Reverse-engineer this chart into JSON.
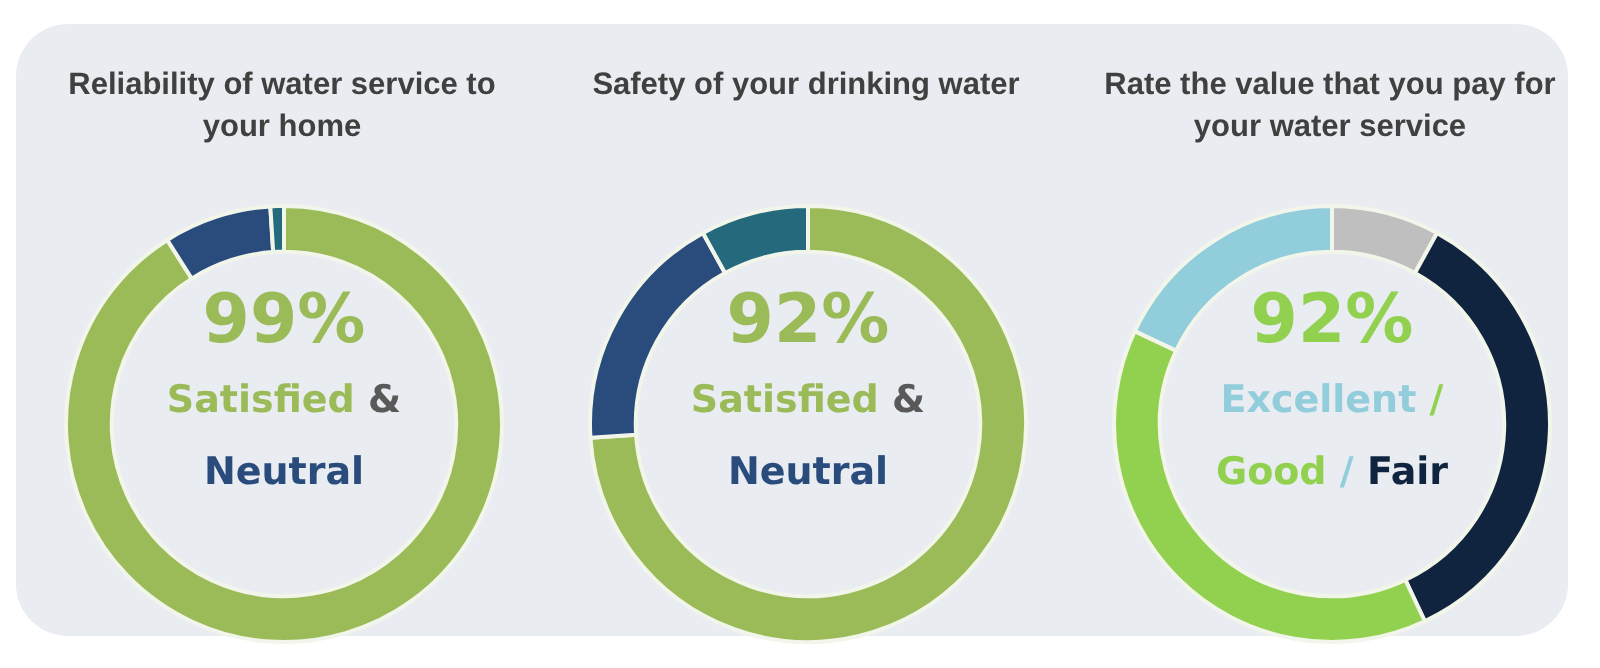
{
  "chart_data": [
    {
      "type": "donut",
      "title": "Reliability of water service to your home",
      "categories": [
        null,
        null,
        null
      ],
      "values": [
        91,
        8,
        1
      ],
      "colors": [
        "#9bbb59",
        "#2a4c7d",
        "#24697c"
      ],
      "annotations": [
        "99%",
        "Satisfied & Neutral"
      ],
      "legend": false
    },
    {
      "type": "donut",
      "title": "Safety of your drinking water",
      "categories": [
        null,
        null,
        null
      ],
      "values": [
        74,
        18,
        8
      ],
      "colors": [
        "#9bbb59",
        "#2a4c7d",
        "#24697c"
      ],
      "annotations": [
        "92%",
        "Satisfied & Neutral"
      ],
      "legend": false
    },
    {
      "type": "donut",
      "title": "Rate the value that you pay for your water service",
      "categories": [
        null,
        null,
        null,
        null
      ],
      "values": [
        8,
        35,
        39,
        18
      ],
      "colors": [
        "#bfbfbf",
        "#10243f",
        "#92d050",
        "#92cddc"
      ],
      "annotations": [
        "92%",
        "Excellent / Good / Fair"
      ],
      "legend": false
    }
  ]
}
